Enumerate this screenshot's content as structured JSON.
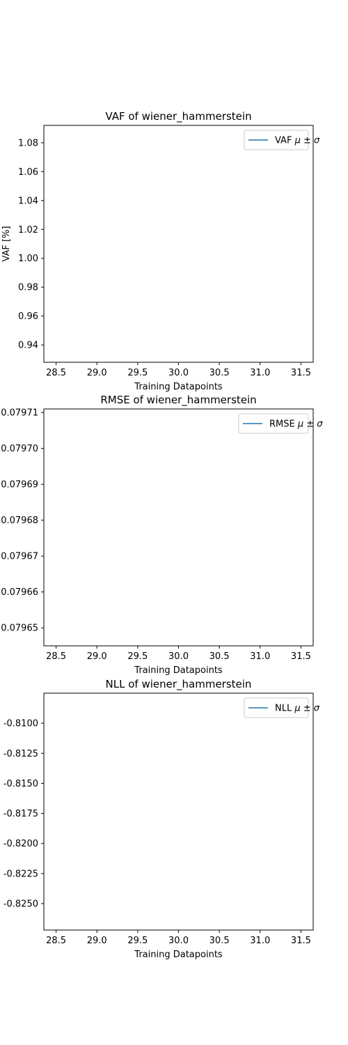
{
  "chart_data": [
    {
      "type": "line",
      "title": "VAF of wiener_hammerstein",
      "xlabel": "Training Datapoints",
      "ylabel": "VAF [%]",
      "xlim": [
        28.35,
        31.65
      ],
      "ylim": [
        0.928,
        1.092
      ],
      "xticks": [
        28.5,
        29.0,
        29.5,
        30.0,
        30.5,
        31.0,
        31.5
      ],
      "xticklabels": [
        "28.5",
        "29.0",
        "29.5",
        "30.0",
        "30.5",
        "31.0",
        "31.5"
      ],
      "yticks": [
        0.94,
        0.96,
        0.98,
        1.0,
        1.02,
        1.04,
        1.06,
        1.08
      ],
      "yticklabels": [
        "0.94",
        "0.96",
        "0.98",
        "1.00",
        "1.02",
        "1.04",
        "1.06",
        "1.08"
      ],
      "grid": false,
      "legend_position": "top-right",
      "series": [
        {
          "name": "VAF",
          "legend_label": "VAF",
          "color": "#1f77b4",
          "x": [],
          "y": []
        }
      ]
    },
    {
      "type": "line",
      "title": "RMSE of wiener_hammerstein",
      "xlabel": "Training Datapoints",
      "ylabel": "",
      "xlim": [
        28.35,
        31.65
      ],
      "ylim": [
        0.079645,
        0.079711
      ],
      "xticks": [
        28.5,
        29.0,
        29.5,
        30.0,
        30.5,
        31.0,
        31.5
      ],
      "xticklabels": [
        "28.5",
        "29.0",
        "29.5",
        "30.0",
        "30.5",
        "31.0",
        "31.5"
      ],
      "yticks": [
        0.07965,
        0.07966,
        0.07967,
        0.07968,
        0.07969,
        0.0797,
        0.07971
      ],
      "yticklabels": [
        "0.07965",
        "0.07966",
        "0.07967",
        "0.07968",
        "0.07969",
        "0.07970",
        "0.07971"
      ],
      "grid": false,
      "legend_position": "top-right",
      "series": [
        {
          "name": "RMSE",
          "legend_label": "RMSE",
          "color": "#1f77b4",
          "x": [],
          "y": []
        }
      ]
    },
    {
      "type": "line",
      "title": "NLL of wiener_hammerstein",
      "xlabel": "Training Datapoints",
      "ylabel": "",
      "xlim": [
        28.35,
        31.65
      ],
      "ylim": [
        -0.8272,
        -0.8075
      ],
      "xticks": [
        28.5,
        29.0,
        29.5,
        30.0,
        30.5,
        31.0,
        31.5
      ],
      "xticklabels": [
        "28.5",
        "29.0",
        "29.5",
        "30.0",
        "30.5",
        "31.0",
        "31.5"
      ],
      "yticks": [
        -0.81,
        -0.8125,
        -0.815,
        -0.8175,
        -0.82,
        -0.8225,
        -0.825
      ],
      "yticklabels": [
        "-0.8100",
        "-0.8125",
        "-0.8150",
        "-0.8175",
        "-0.8200",
        "-0.8225",
        "-0.8250"
      ],
      "grid": false,
      "legend_position": "top-right",
      "series": [
        {
          "name": "NLL",
          "legend_label": "NLL",
          "color": "#1f77b4",
          "x": [],
          "y": []
        }
      ]
    }
  ]
}
